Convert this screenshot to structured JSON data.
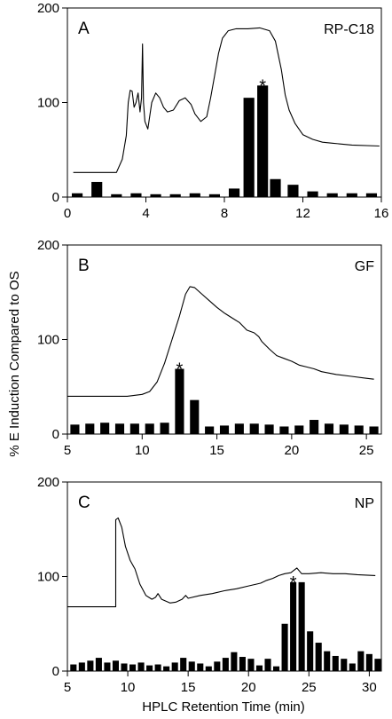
{
  "figure": {
    "ylabel": "% E Induction Compared to OS",
    "xlabel": "HPLC Retention Time (min)"
  },
  "chart_data": [
    {
      "type": "bar",
      "panel": "A",
      "name": "RP-C18",
      "xlim": [
        0,
        16
      ],
      "ylim": [
        0,
        200
      ],
      "xticks": [
        0,
        4,
        8,
        12,
        16
      ],
      "yticks": [
        0,
        100,
        200
      ],
      "bar_width": 0.55,
      "bars_x": [
        0.5,
        1.5,
        2.5,
        3.5,
        4.5,
        5.5,
        6.5,
        7.5,
        8.5,
        9.25,
        9.95,
        10.6,
        11.5,
        12.5,
        13.5,
        14.5,
        15.5
      ],
      "bars_y": [
        4,
        16,
        3,
        4,
        3,
        3,
        4,
        3,
        9,
        105,
        118,
        19,
        13,
        6,
        4,
        4,
        4
      ],
      "star_x": 9.95,
      "trace": [
        [
          0.3,
          26
        ],
        [
          2.5,
          26
        ],
        [
          2.8,
          40
        ],
        [
          3.0,
          65
        ],
        [
          3.1,
          100
        ],
        [
          3.2,
          113
        ],
        [
          3.3,
          112
        ],
        [
          3.4,
          95
        ],
        [
          3.5,
          100
        ],
        [
          3.6,
          110
        ],
        [
          3.7,
          90
        ],
        [
          3.78,
          105
        ],
        [
          3.83,
          162
        ],
        [
          3.88,
          100
        ],
        [
          3.95,
          80
        ],
        [
          4.1,
          72
        ],
        [
          4.3,
          100
        ],
        [
          4.5,
          110
        ],
        [
          4.7,
          105
        ],
        [
          4.9,
          95
        ],
        [
          5.1,
          90
        ],
        [
          5.4,
          92
        ],
        [
          5.7,
          102
        ],
        [
          6.0,
          105
        ],
        [
          6.3,
          98
        ],
        [
          6.5,
          88
        ],
        [
          6.8,
          80
        ],
        [
          7.1,
          85
        ],
        [
          7.3,
          105
        ],
        [
          7.5,
          128
        ],
        [
          7.7,
          152
        ],
        [
          7.9,
          168
        ],
        [
          8.2,
          176
        ],
        [
          8.6,
          178
        ],
        [
          9.2,
          178
        ],
        [
          9.8,
          179
        ],
        [
          10.3,
          176
        ],
        [
          10.6,
          165
        ],
        [
          10.9,
          135
        ],
        [
          11.1,
          108
        ],
        [
          11.3,
          92
        ],
        [
          11.6,
          78
        ],
        [
          12.0,
          66
        ],
        [
          12.5,
          61
        ],
        [
          13.0,
          58
        ],
        [
          13.5,
          57
        ],
        [
          14.5,
          55
        ],
        [
          15.9,
          54
        ]
      ]
    },
    {
      "type": "bar",
      "panel": "B",
      "name": "GF",
      "xlim": [
        5,
        26
      ],
      "ylim": [
        0,
        200
      ],
      "xticks": [
        5,
        10,
        15,
        20,
        25
      ],
      "yticks": [
        0,
        100,
        200
      ],
      "bar_width": 0.6,
      "bars_x": [
        5.5,
        6.5,
        7.5,
        8.5,
        9.5,
        10.5,
        11.5,
        12.5,
        13.5,
        14.5,
        15.5,
        16.5,
        17.5,
        18.5,
        19.5,
        20.5,
        21.5,
        22.5,
        23.5,
        24.5,
        25.5
      ],
      "bars_y": [
        10,
        11,
        12,
        11,
        11,
        11,
        12,
        69,
        36,
        8,
        9,
        11,
        11,
        10,
        8,
        9,
        15,
        11,
        10,
        9,
        8
      ],
      "star_x": 12.5,
      "trace": [
        [
          5.0,
          40
        ],
        [
          9.0,
          40
        ],
        [
          10.0,
          42
        ],
        [
          10.5,
          45
        ],
        [
          11.0,
          55
        ],
        [
          11.5,
          75
        ],
        [
          12.0,
          100
        ],
        [
          12.5,
          125
        ],
        [
          12.9,
          148
        ],
        [
          13.2,
          156
        ],
        [
          13.5,
          155
        ],
        [
          14.0,
          148
        ],
        [
          14.5,
          141
        ],
        [
          15.0,
          134
        ],
        [
          15.5,
          128
        ],
        [
          16.0,
          123
        ],
        [
          16.5,
          118
        ],
        [
          17.0,
          110
        ],
        [
          17.5,
          107
        ],
        [
          17.8,
          103
        ],
        [
          18.0,
          98
        ],
        [
          18.5,
          90
        ],
        [
          19.0,
          83
        ],
        [
          19.5,
          80
        ],
        [
          20.0,
          77
        ],
        [
          20.5,
          73
        ],
        [
          21.0,
          71
        ],
        [
          21.5,
          69
        ],
        [
          22.0,
          66
        ],
        [
          23.0,
          63
        ],
        [
          24.0,
          61
        ],
        [
          25.0,
          59
        ],
        [
          25.5,
          58
        ]
      ]
    },
    {
      "type": "bar",
      "panel": "C",
      "name": "NP",
      "xlim": [
        5,
        31
      ],
      "ylim": [
        0,
        200
      ],
      "xticks": [
        5,
        10,
        15,
        20,
        25,
        30
      ],
      "yticks": [
        0,
        100,
        200
      ],
      "bar_width": 0.52,
      "bars_x": [
        5.5,
        6.2,
        6.9,
        7.6,
        8.3,
        9.0,
        9.7,
        10.4,
        11.1,
        11.8,
        12.5,
        13.2,
        13.9,
        14.6,
        15.3,
        16.0,
        16.7,
        17.4,
        18.1,
        18.8,
        19.5,
        20.2,
        20.9,
        21.6,
        22.3,
        23.0,
        23.7,
        24.4,
        25.1,
        25.8,
        26.5,
        27.2,
        27.9,
        28.6,
        29.3,
        30.0,
        30.7
      ],
      "bars_y": [
        7,
        9,
        11,
        14,
        9,
        11,
        8,
        7,
        9,
        6,
        7,
        5,
        9,
        14,
        10,
        8,
        5,
        10,
        14,
        20,
        15,
        13,
        6,
        13,
        5,
        50,
        94,
        94,
        42,
        30,
        21,
        16,
        13,
        8,
        21,
        18,
        13
      ],
      "star_x": 23.7,
      "trace": [
        [
          5.0,
          68
        ],
        [
          9.0,
          68
        ],
        [
          9.0,
          160
        ],
        [
          9.2,
          162
        ],
        [
          9.5,
          152
        ],
        [
          9.8,
          132
        ],
        [
          10.2,
          117
        ],
        [
          10.6,
          108
        ],
        [
          11.0,
          92
        ],
        [
          11.5,
          80
        ],
        [
          12.0,
          76
        ],
        [
          12.3,
          78
        ],
        [
          12.5,
          82
        ],
        [
          12.8,
          76
        ],
        [
          13.5,
          72
        ],
        [
          14.0,
          73
        ],
        [
          14.5,
          76
        ],
        [
          14.8,
          80
        ],
        [
          15.0,
          77
        ],
        [
          16.0,
          80
        ],
        [
          17.0,
          82
        ],
        [
          18.0,
          85
        ],
        [
          19.0,
          87
        ],
        [
          20.0,
          90
        ],
        [
          21.0,
          93
        ],
        [
          21.5,
          96
        ],
        [
          22.0,
          98
        ],
        [
          22.5,
          101
        ],
        [
          23.0,
          103
        ],
        [
          23.5,
          104
        ],
        [
          24.0,
          109
        ],
        [
          24.4,
          103
        ],
        [
          25.0,
          103
        ],
        [
          26.0,
          104
        ],
        [
          27.0,
          103
        ],
        [
          28.0,
          103
        ],
        [
          29.0,
          102
        ],
        [
          30.5,
          101
        ]
      ]
    }
  ]
}
